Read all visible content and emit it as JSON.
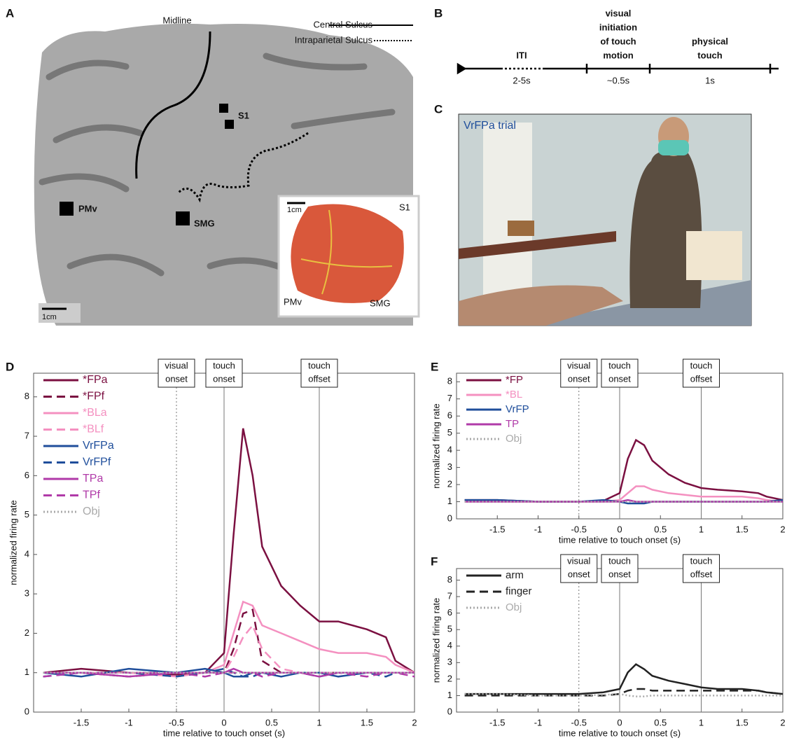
{
  "panel_labels": [
    "A",
    "B",
    "C",
    "D",
    "E",
    "F"
  ],
  "panel_a": {
    "midline": "Midline",
    "sulci": [
      "Central Sulcus",
      "Intraparietal Sulcus"
    ],
    "regions": [
      "S1",
      "PMv",
      "SMG"
    ],
    "scale_bar": "1cm",
    "inset": {
      "scale_bar": "1cm",
      "regions": [
        "S1",
        "PMv",
        "SMG"
      ]
    }
  },
  "panel_b": {
    "phases": [
      {
        "label": [
          "ITI"
        ],
        "duration": "2-5s"
      },
      {
        "label": [
          "visual",
          "initiation",
          "of touch",
          "motion"
        ],
        "duration": "~0.5s"
      },
      {
        "label": [
          "physical",
          "touch"
        ],
        "duration": "1s"
      }
    ]
  },
  "panel_c": {
    "caption": "VrFPa trial"
  },
  "chart_data": [
    {
      "type": "line",
      "ylabel": "normalized firing rate",
      "xlabel": "time relative to touch onset (s)",
      "xlim": [
        -2,
        2
      ],
      "ylim": [
        0,
        8.6
      ],
      "xticks": [
        -1.5,
        -1,
        -0.5,
        0,
        0.5,
        1,
        1.5,
        2
      ],
      "yticks": [
        0,
        1,
        2,
        3,
        4,
        5,
        6,
        7,
        8
      ],
      "annotations": [
        {
          "x": -0.5,
          "label": [
            "visual",
            "onset"
          ],
          "style": "dotted"
        },
        {
          "x": 0,
          "label": [
            "touch",
            "onset"
          ],
          "style": "solid"
        },
        {
          "x": 1,
          "label": [
            "touch",
            "offset"
          ],
          "style": "solid"
        }
      ],
      "x": [
        -1.9,
        -1.5,
        -1,
        -0.5,
        -0.2,
        0,
        0.1,
        0.2,
        0.3,
        0.4,
        0.6,
        0.8,
        1,
        1.2,
        1.5,
        1.7,
        1.8,
        2
      ],
      "series": [
        {
          "name": "*FPa",
          "color": "#7b1041",
          "style": "solid",
          "values": [
            1.0,
            1.1,
            1.0,
            0.95,
            1.0,
            1.5,
            4.5,
            7.2,
            6.0,
            4.2,
            3.2,
            2.7,
            2.3,
            2.3,
            2.1,
            1.9,
            1.3,
            1.0
          ]
        },
        {
          "name": "*FPf",
          "color": "#7b1041",
          "style": "dashed",
          "values": [
            1.0,
            1.0,
            0.9,
            1.0,
            1.0,
            1.0,
            1.6,
            2.5,
            2.6,
            1.3,
            1.0,
            1.0,
            1.0,
            1.0,
            1.0,
            1.0,
            1.0,
            1.0
          ]
        },
        {
          "name": "*BLa",
          "color": "#f490c0",
          "style": "solid",
          "values": [
            1.0,
            1.0,
            1.0,
            0.9,
            1.0,
            1.2,
            2.0,
            2.8,
            2.7,
            2.2,
            2.0,
            1.8,
            1.6,
            1.5,
            1.5,
            1.4,
            1.2,
            1.0
          ]
        },
        {
          "name": "*BLf",
          "color": "#f490c0",
          "style": "dashed",
          "values": [
            1.0,
            1.0,
            1.0,
            1.0,
            1.0,
            1.0,
            1.4,
            1.9,
            2.2,
            1.6,
            1.1,
            1.0,
            1.0,
            1.0,
            1.0,
            1.0,
            1.0,
            1.0
          ]
        },
        {
          "name": "VrFPa",
          "color": "#1f4e9b",
          "style": "solid",
          "values": [
            1.0,
            0.9,
            1.1,
            1.0,
            1.1,
            1.0,
            0.9,
            0.9,
            1.0,
            1.0,
            0.9,
            1.0,
            1.0,
            0.9,
            1.0,
            1.0,
            1.0,
            1.0
          ]
        },
        {
          "name": "VrFPf",
          "color": "#1f4e9b",
          "style": "dashed",
          "values": [
            0.9,
            1.0,
            1.0,
            0.9,
            1.0,
            1.1,
            1.0,
            0.9,
            0.9,
            1.0,
            1.0,
            1.0,
            0.9,
            1.0,
            1.0,
            0.9,
            1.0,
            1.0
          ]
        },
        {
          "name": "TPa",
          "color": "#b03aa8",
          "style": "solid",
          "values": [
            1.0,
            1.0,
            0.9,
            1.0,
            1.0,
            1.0,
            1.1,
            1.0,
            1.0,
            1.0,
            1.0,
            1.0,
            0.9,
            1.0,
            1.0,
            1.0,
            1.0,
            1.0
          ]
        },
        {
          "name": "TPf",
          "color": "#b03aa8",
          "style": "dashed",
          "values": [
            0.9,
            1.0,
            1.0,
            1.0,
            0.9,
            1.0,
            1.0,
            1.0,
            1.0,
            0.9,
            1.0,
            1.0,
            1.0,
            1.0,
            0.9,
            1.0,
            1.0,
            0.9
          ]
        },
        {
          "name": "Obj",
          "color": "#aaaaaa",
          "style": "dotted",
          "values": [
            1.0,
            1.0,
            1.0,
            1.0,
            1.0,
            1.0,
            1.0,
            1.0,
            1.0,
            1.0,
            1.0,
            1.0,
            1.0,
            1.0,
            1.0,
            1.0,
            1.0,
            1.0
          ]
        }
      ]
    },
    {
      "type": "line",
      "ylabel": "normalized firing rate",
      "xlabel": "time relative to touch onset (s)",
      "xlim": [
        -2,
        2
      ],
      "ylim": [
        0,
        8.5
      ],
      "xticks": [
        -1.5,
        -1,
        -0.5,
        0,
        0.5,
        1,
        1.5,
        2
      ],
      "yticks": [
        0,
        1,
        2,
        3,
        4,
        5,
        6,
        7,
        8
      ],
      "annotations": [
        {
          "x": -0.5,
          "label": [
            "visual",
            "onset"
          ],
          "style": "dotted"
        },
        {
          "x": 0,
          "label": [
            "touch",
            "onset"
          ],
          "style": "solid"
        },
        {
          "x": 1,
          "label": [
            "touch",
            "offset"
          ],
          "style": "solid"
        }
      ],
      "x": [
        -1.9,
        -1.5,
        -1,
        -0.5,
        -0.2,
        0,
        0.1,
        0.2,
        0.3,
        0.4,
        0.6,
        0.8,
        1,
        1.2,
        1.5,
        1.7,
        1.8,
        2
      ],
      "series": [
        {
          "name": "*FP",
          "color": "#7b1041",
          "style": "solid",
          "values": [
            1.1,
            1.1,
            1.0,
            1.0,
            1.05,
            1.5,
            3.5,
            4.6,
            4.3,
            3.4,
            2.6,
            2.1,
            1.8,
            1.7,
            1.6,
            1.5,
            1.3,
            1.1
          ]
        },
        {
          "name": "*BL",
          "color": "#f490c0",
          "style": "solid",
          "values": [
            1.0,
            1.0,
            1.0,
            1.0,
            1.0,
            1.1,
            1.5,
            1.9,
            1.9,
            1.7,
            1.5,
            1.4,
            1.3,
            1.3,
            1.3,
            1.2,
            1.1,
            1.0
          ]
        },
        {
          "name": "VrFP",
          "color": "#1f4e9b",
          "style": "solid",
          "values": [
            1.1,
            1.1,
            1.0,
            1.0,
            1.1,
            1.0,
            0.9,
            0.9,
            0.9,
            1.0,
            1.0,
            1.0,
            1.0,
            1.0,
            1.0,
            1.0,
            1.0,
            1.1
          ]
        },
        {
          "name": "TP",
          "color": "#b03aa8",
          "style": "solid",
          "values": [
            1.0,
            1.0,
            1.0,
            1.0,
            1.0,
            1.0,
            1.1,
            1.0,
            1.0,
            1.0,
            1.0,
            1.0,
            1.0,
            1.0,
            1.0,
            1.0,
            1.0,
            1.0
          ]
        },
        {
          "name": "Obj",
          "color": "#aaaaaa",
          "style": "dotted",
          "values": [
            1.0,
            1.0,
            1.0,
            1.0,
            1.0,
            1.0,
            1.0,
            1.0,
            1.0,
            1.0,
            1.0,
            1.0,
            1.0,
            1.0,
            1.0,
            1.0,
            1.0,
            1.0
          ]
        }
      ]
    },
    {
      "type": "line",
      "ylabel": "normalized firing rate",
      "xlabel": "time relative to touch onset (s)",
      "xlim": [
        -2,
        2
      ],
      "ylim": [
        0,
        8.7
      ],
      "xticks": [
        -1.5,
        -1,
        -0.5,
        0,
        0.5,
        1,
        1.5,
        2
      ],
      "yticks": [
        0,
        1,
        2,
        3,
        4,
        5,
        6,
        7,
        8
      ],
      "annotations": [
        {
          "x": -0.5,
          "label": [
            "visual",
            "onset"
          ],
          "style": "dotted"
        },
        {
          "x": 0,
          "label": [
            "touch",
            "onset"
          ],
          "style": "solid"
        },
        {
          "x": 1,
          "label": [
            "touch",
            "offset"
          ],
          "style": "solid"
        }
      ],
      "x": [
        -1.9,
        -1.5,
        -1,
        -0.5,
        -0.2,
        0,
        0.1,
        0.2,
        0.3,
        0.4,
        0.6,
        0.8,
        1,
        1.2,
        1.5,
        1.7,
        1.8,
        2
      ],
      "series": [
        {
          "name": "arm",
          "color": "#222222",
          "style": "solid",
          "values": [
            1.1,
            1.1,
            1.1,
            1.1,
            1.2,
            1.4,
            2.4,
            2.9,
            2.6,
            2.2,
            1.9,
            1.7,
            1.5,
            1.4,
            1.4,
            1.3,
            1.2,
            1.1
          ]
        },
        {
          "name": "finger",
          "color": "#222222",
          "style": "dashed",
          "values": [
            1.0,
            1.0,
            1.0,
            1.0,
            1.0,
            1.1,
            1.3,
            1.4,
            1.4,
            1.3,
            1.3,
            1.3,
            1.3,
            1.3,
            1.3,
            1.3,
            1.2,
            1.1
          ]
        },
        {
          "name": "Obj",
          "color": "#aaaaaa",
          "style": "dotted",
          "values": [
            1.1,
            1.1,
            1.0,
            1.0,
            1.05,
            1.1,
            1.0,
            0.95,
            0.95,
            1.0,
            1.0,
            1.0,
            1.0,
            1.0,
            1.0,
            1.0,
            1.0,
            1.0
          ]
        }
      ]
    }
  ]
}
